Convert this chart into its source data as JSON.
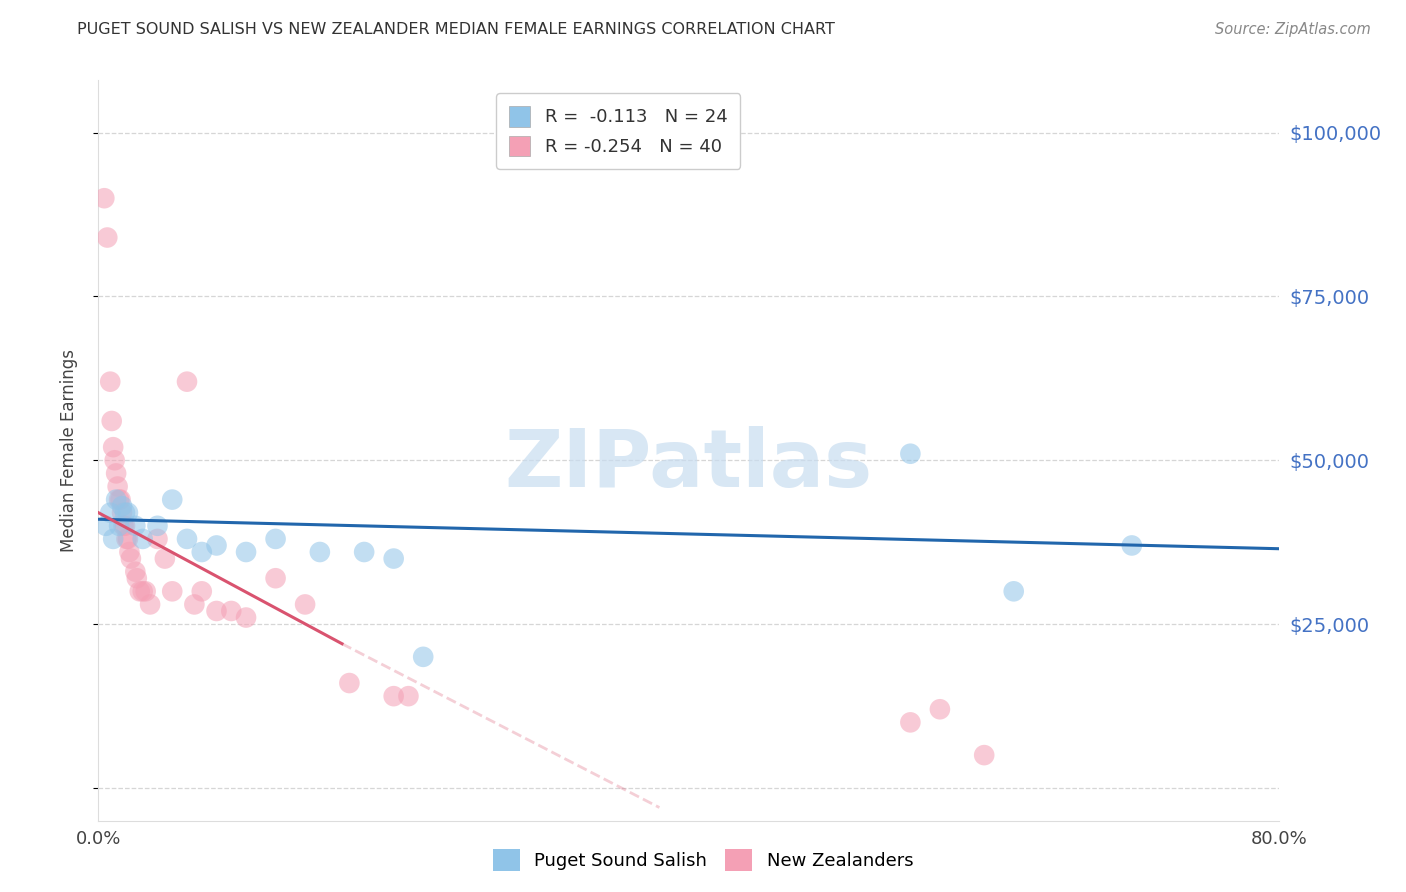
{
  "title": "PUGET SOUND SALISH VS NEW ZEALANDER MEDIAN FEMALE EARNINGS CORRELATION CHART",
  "source": "Source: ZipAtlas.com",
  "ylabel": "Median Female Earnings",
  "xlim": [
    0.0,
    0.8
  ],
  "ylim": [
    -5000,
    108000
  ],
  "yticks": [
    0,
    25000,
    50000,
    75000,
    100000
  ],
  "ytick_labels": [
    "",
    "$25,000",
    "$50,000",
    "$75,000",
    "$100,000"
  ],
  "xticks": [
    0.0,
    0.1,
    0.2,
    0.3,
    0.4,
    0.5,
    0.6,
    0.7,
    0.8
  ],
  "blue_R": -0.113,
  "blue_N": 24,
  "pink_R": -0.254,
  "pink_N": 40,
  "blue_color": "#90c4e8",
  "pink_color": "#f4a0b5",
  "blue_line_color": "#2166ac",
  "pink_line_color": "#d9536f",
  "blue_scatter_x": [
    0.005,
    0.008,
    0.01,
    0.012,
    0.014,
    0.016,
    0.018,
    0.02,
    0.025,
    0.03,
    0.04,
    0.05,
    0.06,
    0.07,
    0.08,
    0.1,
    0.12,
    0.15,
    0.18,
    0.2,
    0.22,
    0.55,
    0.62,
    0.7
  ],
  "blue_scatter_y": [
    40000,
    42000,
    38000,
    44000,
    40000,
    43000,
    42000,
    42000,
    40000,
    38000,
    40000,
    44000,
    38000,
    36000,
    37000,
    36000,
    38000,
    36000,
    36000,
    35000,
    20000,
    51000,
    30000,
    37000
  ],
  "pink_scatter_x": [
    0.004,
    0.006,
    0.008,
    0.009,
    0.01,
    0.011,
    0.012,
    0.013,
    0.014,
    0.015,
    0.016,
    0.017,
    0.018,
    0.019,
    0.02,
    0.021,
    0.022,
    0.025,
    0.026,
    0.028,
    0.03,
    0.032,
    0.035,
    0.04,
    0.045,
    0.05,
    0.06,
    0.065,
    0.07,
    0.08,
    0.09,
    0.1,
    0.12,
    0.14,
    0.17,
    0.2,
    0.21,
    0.55,
    0.57,
    0.6
  ],
  "pink_scatter_y": [
    90000,
    84000,
    62000,
    56000,
    52000,
    50000,
    48000,
    46000,
    44000,
    44000,
    42000,
    40000,
    40000,
    38000,
    38000,
    36000,
    35000,
    33000,
    32000,
    30000,
    30000,
    30000,
    28000,
    38000,
    35000,
    30000,
    62000,
    28000,
    30000,
    27000,
    27000,
    26000,
    32000,
    28000,
    16000,
    14000,
    14000,
    10000,
    12000,
    5000
  ],
  "blue_line_x0": 0.0,
  "blue_line_x1": 0.8,
  "blue_line_y0": 41000,
  "blue_line_y1": 36500,
  "pink_line_solid_x0": 0.0,
  "pink_line_solid_x1": 0.165,
  "pink_line_y0": 42000,
  "pink_line_y1": 22000,
  "pink_line_dash_x0": 0.165,
  "pink_line_dash_x1": 0.38,
  "pink_line_dash_y0": 22000,
  "pink_line_dash_y1": -3000,
  "background_color": "#ffffff",
  "grid_color": "#cccccc",
  "watermark_text": "ZIPatlas",
  "watermark_color": "#c8ddf0"
}
